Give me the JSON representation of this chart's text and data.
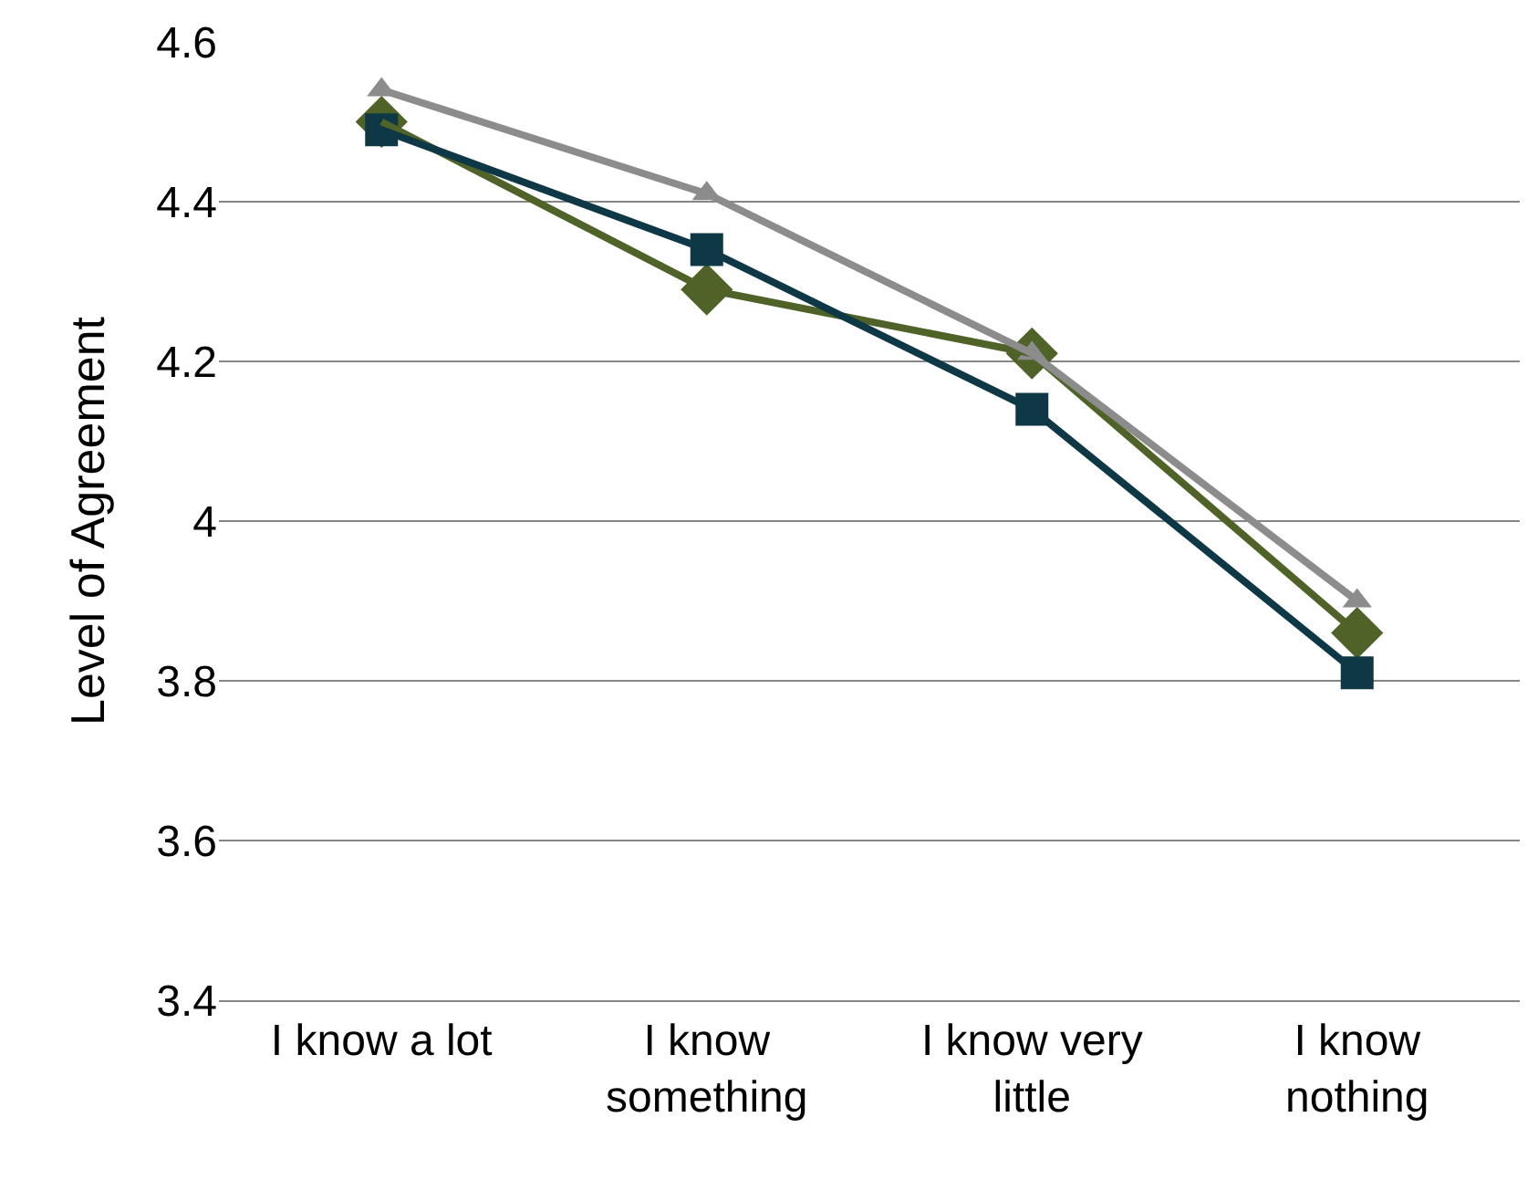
{
  "chart_data": {
    "type": "line",
    "ylabel": "Level of Agreement",
    "categories": [
      "I know a lot",
      "I know something",
      "I know very little",
      "I know nothing"
    ],
    "series": [
      {
        "color": "#4f6228",
        "marker": "diamond",
        "values": [
          4.5,
          4.29,
          4.21,
          3.86
        ]
      },
      {
        "color": "#0e3846",
        "marker": "square",
        "values": [
          4.49,
          4.34,
          4.14,
          3.81
        ]
      },
      {
        "color": "#8c8c8c",
        "marker": "triangle",
        "values": [
          4.54,
          4.41,
          4.21,
          3.9
        ]
      }
    ],
    "ylim": [
      3.4,
      4.6
    ],
    "yticks": [
      3.4,
      3.6,
      3.8,
      4,
      4.2,
      4.4,
      4.6
    ],
    "grid": "y",
    "line_style": "solid"
  }
}
